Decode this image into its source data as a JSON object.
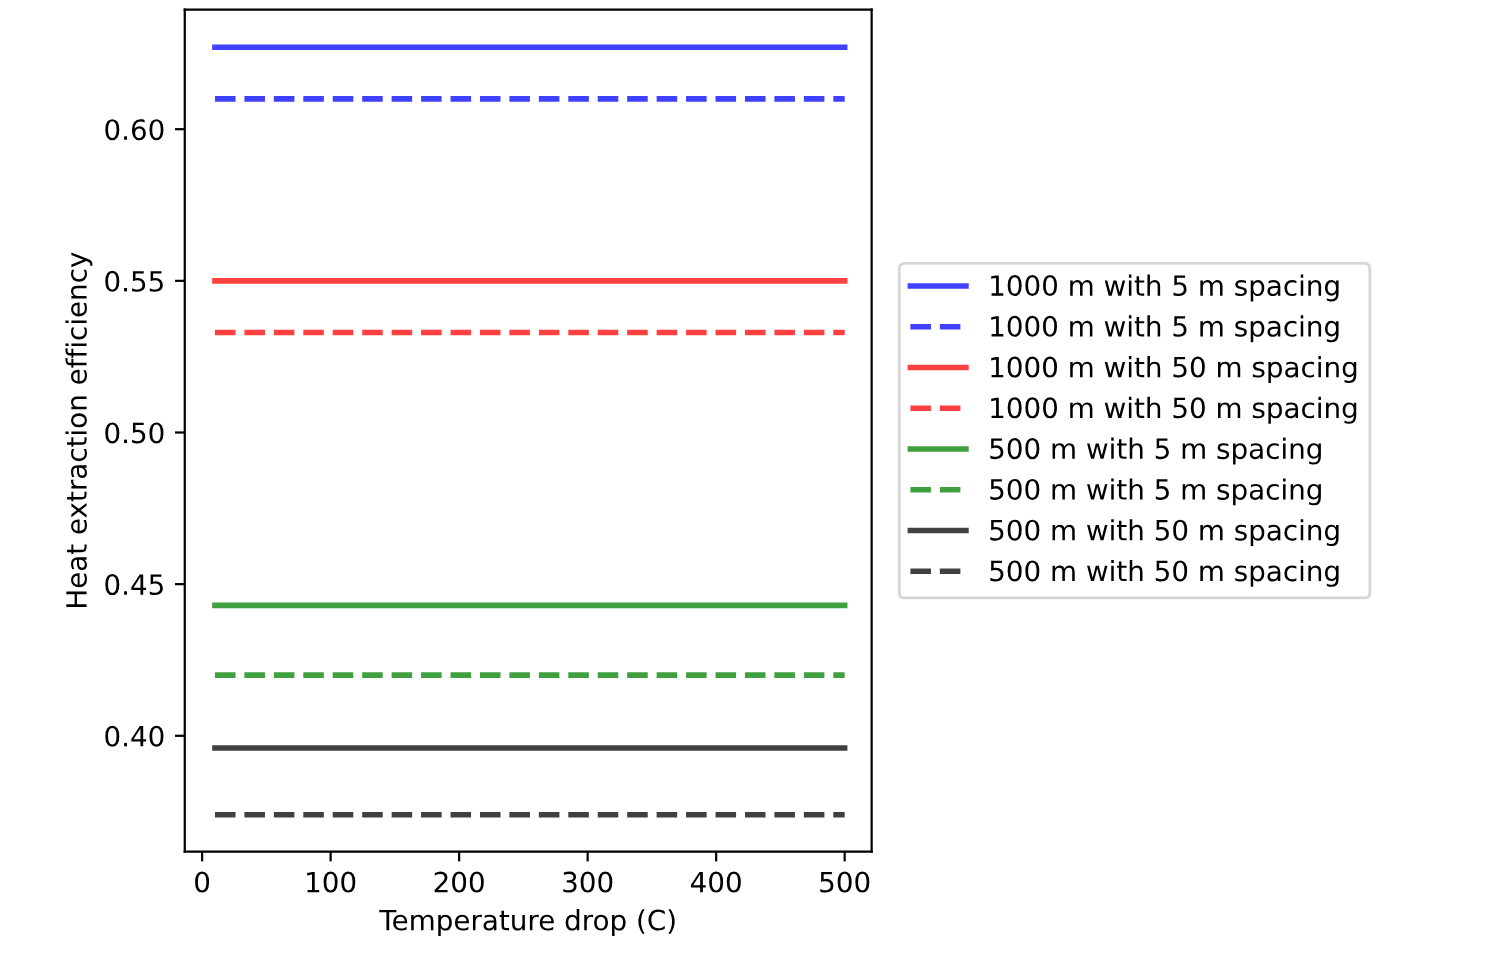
{
  "chart_data": {
    "type": "line",
    "xlabel": "Temperature drop (C)",
    "ylabel": "Heat extraction efficiency",
    "x": [
      10,
      500
    ],
    "xlim": [
      -13.5,
      521
    ],
    "xticks": [
      0,
      100,
      200,
      300,
      400,
      500
    ],
    "ylim": [
      0.3618,
      0.6394
    ],
    "yticks": [
      {
        "value": 0.4,
        "label": "0.40"
      },
      {
        "value": 0.45,
        "label": "0.45"
      },
      {
        "value": 0.5,
        "label": "0.50"
      },
      {
        "value": 0.55,
        "label": "0.55"
      },
      {
        "value": 0.6,
        "label": "0.60"
      }
    ],
    "grid": false,
    "legend": "right",
    "marker": "none",
    "series": [
      {
        "name": "1000 m with 5 m spacing",
        "color": "#4040ff",
        "line_style": "solid",
        "values": [
          0.627,
          0.627
        ]
      },
      {
        "name": "1000 m with 5 m spacing",
        "color": "#4040ff",
        "line_style": "dashed",
        "values": [
          0.61,
          0.61
        ]
      },
      {
        "name": "1000 m with 50 m spacing",
        "color": "#ff4040",
        "line_style": "solid",
        "values": [
          0.55,
          0.55
        ]
      },
      {
        "name": "1000 m with 50 m spacing",
        "color": "#ff4040",
        "line_style": "dashed",
        "values": [
          0.533,
          0.533
        ]
      },
      {
        "name": "500 m with 5 m spacing",
        "color": "#40a040",
        "line_style": "solid",
        "values": [
          0.443,
          0.443
        ]
      },
      {
        "name": "500 m with 5 m spacing",
        "color": "#40a040",
        "line_style": "dashed",
        "values": [
          0.42,
          0.42
        ]
      },
      {
        "name": "500 m with 50 m spacing",
        "color": "#404040",
        "line_style": "solid",
        "values": [
          0.396,
          0.396
        ]
      },
      {
        "name": "500 m with 50 m spacing",
        "color": "#404040",
        "line_style": "dashed",
        "values": [
          0.374,
          0.374
        ]
      }
    ]
  }
}
